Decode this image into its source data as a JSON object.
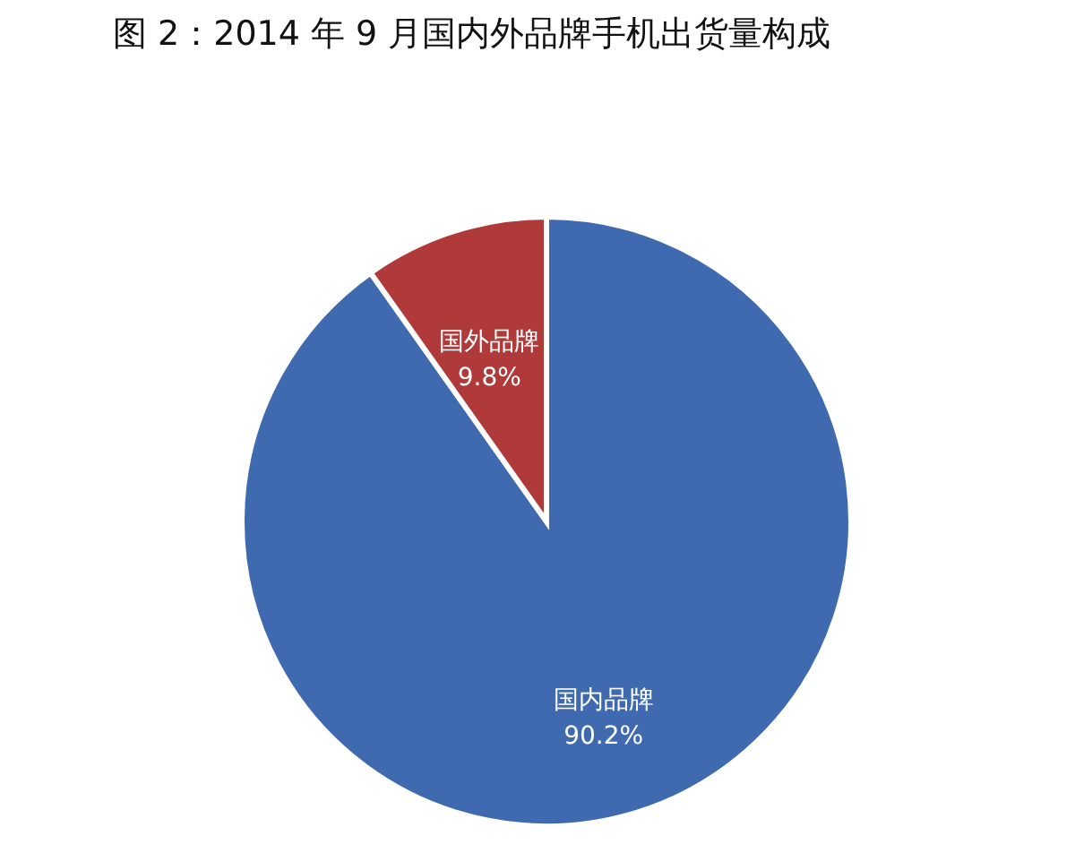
{
  "chart_data": {
    "type": "pie",
    "title": "图 2：2014 年 9 月国内外品牌手机出货量构成",
    "categories": [
      "国内品牌",
      "国外品牌"
    ],
    "values": [
      90.2,
      9.8
    ],
    "colors": [
      "#3f6ab0",
      "#b03a3a"
    ],
    "value_labels": [
      "90.2%",
      "9.8%"
    ],
    "legend": false
  }
}
